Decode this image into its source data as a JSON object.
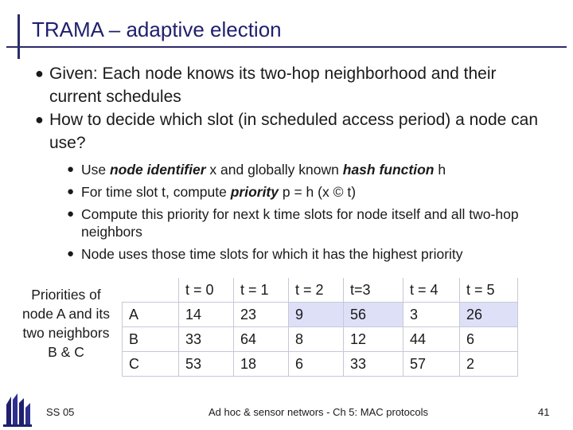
{
  "slide": {
    "title": "TRAMA – adaptive election",
    "bullets": [
      {
        "text": "Given: Each node knows its two-hop neighborhood and their current schedules"
      },
      {
        "text": "How to decide which slot (in scheduled access period) a node can use?"
      }
    ],
    "sub_bullets": [
      {
        "t1": "Use ",
        "t2": "node identifier",
        "t3": " x and globally known ",
        "t4": "hash function",
        "t5": " h"
      },
      {
        "t1": "For time slot t, compute ",
        "t2": "priority",
        "t3": " p = h (x © t)"
      },
      {
        "t1": "Compute this priority for next k time slots for node itself and all two-hop neighbors"
      },
      {
        "t1": "Node uses those time slots for which it has the highest priority"
      }
    ],
    "priorities_label": "Priorities of node A and its two neighbors B & C"
  },
  "table": {
    "header": [
      "",
      "t = 0",
      "t = 1",
      "t = 2",
      "t=3",
      "t = 4",
      "t = 5"
    ],
    "rows": [
      [
        "A",
        "14",
        "23",
        "9",
        "56",
        "3",
        "26"
      ],
      [
        "B",
        "33",
        "64",
        "8",
        "12",
        "44",
        "6"
      ],
      [
        "C",
        "53",
        "18",
        "6",
        "33",
        "57",
        "2"
      ]
    ]
  },
  "footer": {
    "left": "SS 05",
    "middle": "Ad hoc & sensor networs - Ch 5: MAC protocols",
    "page": "41"
  },
  "colors": {
    "accent": "#1f1f6e",
    "highlight": "#dde0f7"
  }
}
